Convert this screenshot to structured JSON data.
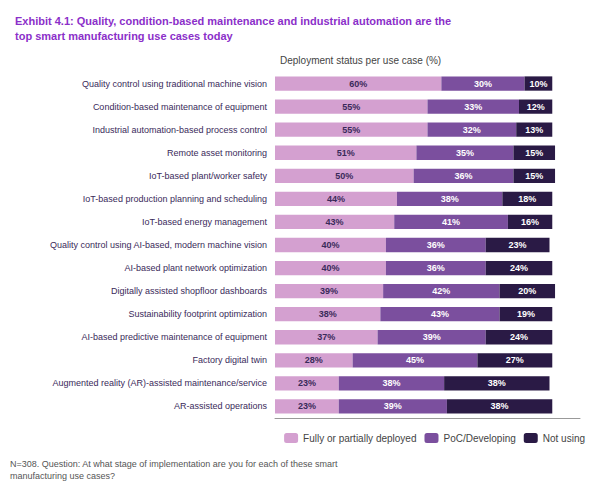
{
  "chart_data": {
    "type": "bar",
    "orientation": "horizontal",
    "stacked": true,
    "title": "Exhibit 4.1: Quality, condition-based maintenance and industrial automation are the\ntop smart manufacturing use cases today",
    "subtitle": "Deployment status per use case (%)",
    "annotations": [
      "N=308. Question: At what stage of implementation are you for each of these smart\nmanufacturing use cases?"
    ],
    "categories": [
      "Quality control using traditional machine vision",
      "Condition-based maintenance of equipment",
      "Industrial automation-based process control",
      "Remote asset monitoring",
      "IoT-based plant/worker safety",
      "IoT-based production planning and scheduling",
      "IoT-based energy management",
      "Quality control using AI-based, modern machine vision",
      "AI-based plant network optimization",
      "Digitally assisted shopfloor dashboards",
      "Sustainability footprint optimization",
      "AI-based predictive maintenance of equipment",
      "Factory digital twin",
      "Augmented reality (AR)-assisted maintenance/service",
      "AR-assisted operations"
    ],
    "series": [
      {
        "name": "Fully or partially deployed",
        "color": "#d4a0d0",
        "values": [
          60,
          55,
          55,
          51,
          50,
          44,
          43,
          40,
          40,
          39,
          38,
          37,
          28,
          23,
          23
        ],
        "value_labels": [
          "60%",
          "55%",
          "55%",
          "51%",
          "50%",
          "44%",
          "43%",
          "40%",
          "40%",
          "39%",
          "38%",
          "37%",
          "28%",
          "23%",
          "23%"
        ]
      },
      {
        "name": "PoC/Developing",
        "color": "#7b4f9e",
        "values": [
          30,
          33,
          32,
          35,
          36,
          38,
          41,
          36,
          36,
          42,
          43,
          39,
          45,
          38,
          39
        ],
        "value_labels": [
          "30%",
          "33%",
          "32%",
          "35%",
          "36%",
          "38%",
          "41%",
          "36%",
          "36%",
          "42%",
          "43%",
          "39%",
          "45%",
          "38%",
          "39%"
        ]
      },
      {
        "name": "Not using",
        "color": "#2a1a45",
        "values": [
          10,
          12,
          13,
          15,
          15,
          18,
          16,
          23,
          24,
          20,
          19,
          24,
          27,
          38,
          38
        ],
        "value_labels": [
          "10%",
          "12%",
          "13%",
          "15%",
          "15%",
          "18%",
          "16%",
          "23%",
          "24%",
          "20%",
          "19%",
          "24%",
          "27%",
          "38%",
          "38%"
        ]
      }
    ],
    "xlim": [
      0,
      110
    ],
    "data_labels": true,
    "tick_labels": "y",
    "grid": false,
    "legend": "lower right"
  }
}
